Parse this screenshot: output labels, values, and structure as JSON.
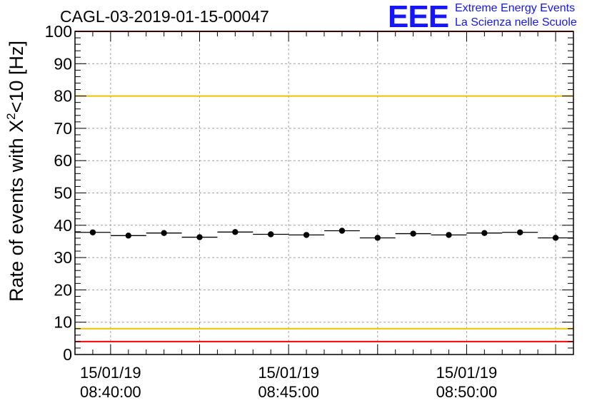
{
  "title": "CAGL-03-2019-01-15-00047",
  "logo": {
    "mark": "EEE",
    "line1": "Extreme Energy Events",
    "line2": "La Scienza nelle Scuole"
  },
  "chart_data": {
    "type": "scatter",
    "ylabel_parts": {
      "main": "Rate of events with X",
      "sup": "2",
      "rest": "<10 [Hz]"
    },
    "ylim": [
      0,
      100
    ],
    "yticks": [
      0,
      10,
      20,
      30,
      40,
      50,
      60,
      70,
      80,
      90,
      100
    ],
    "x_unit": "minutes after 08:39:00 on 15/01/19",
    "xlim": [
      0,
      14
    ],
    "xticks": [
      {
        "x": 1,
        "date": "15/01/19",
        "time": "08:40:00"
      },
      {
        "x": 6,
        "date": "15/01/19",
        "time": "08:45:00"
      },
      {
        "x": 11,
        "date": "15/01/19",
        "time": "08:50:00"
      }
    ],
    "bin_width_min": 1,
    "series": [
      {
        "points": [
          {
            "x": 0.5,
            "y": 37.8
          },
          {
            "x": 1.5,
            "y": 36.8
          },
          {
            "x": 2.5,
            "y": 37.6
          },
          {
            "x": 3.5,
            "y": 36.3
          },
          {
            "x": 4.5,
            "y": 37.9
          },
          {
            "x": 5.5,
            "y": 37.2
          },
          {
            "x": 6.5,
            "y": 37.0
          },
          {
            "x": 7.5,
            "y": 38.3
          },
          {
            "x": 8.5,
            "y": 36.1
          },
          {
            "x": 9.5,
            "y": 37.4
          },
          {
            "x": 10.5,
            "y": 37.0
          },
          {
            "x": 11.5,
            "y": 37.6
          },
          {
            "x": 12.5,
            "y": 37.8
          },
          {
            "x": 13.5,
            "y": 36.1
          }
        ]
      }
    ],
    "reference_lines": [
      {
        "y": 100,
        "color": "#ff0000"
      },
      {
        "y": 80,
        "color": "#e8c300"
      },
      {
        "y": 8,
        "color": "#e8c300"
      },
      {
        "y": 4,
        "color": "#ff0000"
      }
    ],
    "grid": true,
    "colors": {
      "markers": "#000000",
      "logo": "#1515ff"
    }
  }
}
